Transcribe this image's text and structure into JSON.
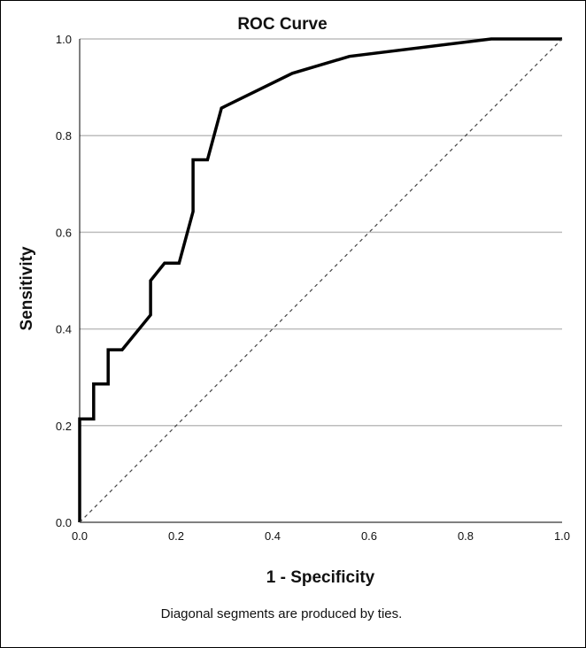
{
  "chart_data": {
    "type": "line",
    "title": "ROC Curve",
    "xlabel": "1 - Specificity",
    "ylabel": "Sensitivity",
    "xlim": [
      0.0,
      1.0
    ],
    "ylim": [
      0.0,
      1.0
    ],
    "x_ticks": [
      "0.0",
      "0.2",
      "0.4",
      "0.6",
      "0.8",
      "1.0"
    ],
    "y_ticks": [
      "0.0",
      "0.2",
      "0.4",
      "0.6",
      "0.8",
      "1.0"
    ],
    "grid": "horizontal",
    "footnote": "Diagonal segments are produced by ties.",
    "series": [
      {
        "style": "solid",
        "color": "#000000",
        "points": [
          [
            0.0,
            0.0
          ],
          [
            0.0,
            0.214
          ],
          [
            0.029,
            0.214
          ],
          [
            0.029,
            0.286
          ],
          [
            0.059,
            0.286
          ],
          [
            0.059,
            0.357
          ],
          [
            0.088,
            0.357
          ],
          [
            0.147,
            0.429
          ],
          [
            0.147,
            0.5
          ],
          [
            0.176,
            0.536
          ],
          [
            0.206,
            0.536
          ],
          [
            0.235,
            0.643
          ],
          [
            0.235,
            0.75
          ],
          [
            0.265,
            0.75
          ],
          [
            0.294,
            0.857
          ],
          [
            0.441,
            0.929
          ],
          [
            0.559,
            0.964
          ],
          [
            0.853,
            1.0
          ],
          [
            1.0,
            1.0
          ]
        ]
      },
      {
        "style": "dashed",
        "color": "#444444",
        "points": [
          [
            0.0,
            0.0
          ],
          [
            1.0,
            1.0
          ]
        ]
      }
    ]
  }
}
